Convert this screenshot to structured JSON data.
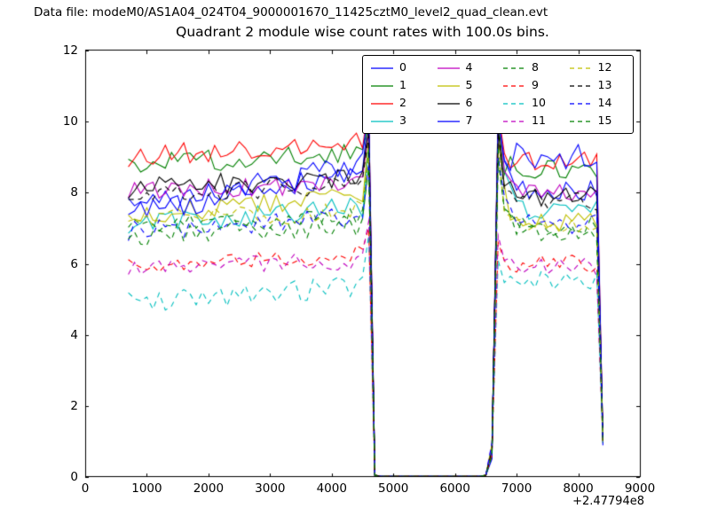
{
  "header": {
    "data_file": "Data file: modeM0/AS1A04_024T04_9000001670_11425cztM0_level2_quad_clean.evt"
  },
  "chart_data": {
    "type": "line",
    "title": "Quadrant 2 module wise count rates with 100.0s bins.",
    "xlabel": "",
    "ylabel": "",
    "x_offset_label": "+2.47794e8",
    "xlim": [
      0,
      9000
    ],
    "ylim": [
      0,
      12
    ],
    "xticks": [
      0,
      1000,
      2000,
      3000,
      4000,
      5000,
      6000,
      7000,
      8000,
      9000
    ],
    "yticks": [
      0,
      2,
      4,
      6,
      8,
      10,
      12
    ],
    "bin_seconds": "100.0",
    "grid": false,
    "legend_position": "upper center, inside axes, 4 columns",
    "legend_entries": [
      "0",
      "1",
      "2",
      "3",
      "4",
      "5",
      "6",
      "7",
      "8",
      "9",
      "10",
      "11",
      "12",
      "13",
      "14",
      "15"
    ],
    "structure": {
      "x_start": 700,
      "x_step": 100,
      "pre_peak_x": 4600,
      "gap": [
        4700,
        6500
      ],
      "post_peak_x": 6700,
      "post_end_x": 8300,
      "x_end": 8400
    },
    "series": [
      {
        "name": "0",
        "color": "#0000ff",
        "style": "solid",
        "pre_start": 7.6,
        "pre_end": 8.6,
        "pre_peak": 10.3,
        "post_peak": 10.2,
        "post_level": 8.0,
        "end_level": 1.1,
        "noise": 0.35
      },
      {
        "name": "1",
        "color": "#008000",
        "style": "solid",
        "pre_start": 8.8,
        "pre_end": 9.1,
        "pre_peak": 9.9,
        "post_peak": 10.0,
        "post_level": 8.7,
        "end_level": 1.1,
        "noise": 0.3
      },
      {
        "name": "2",
        "color": "#ff0000",
        "style": "solid",
        "pre_start": 9.0,
        "pre_end": 9.5,
        "pre_peak": 10.5,
        "post_peak": 10.3,
        "post_level": 8.9,
        "end_level": 1.2,
        "noise": 0.3
      },
      {
        "name": "3",
        "color": "#00bfbf",
        "style": "solid",
        "pre_start": 7.1,
        "pre_end": 7.6,
        "pre_peak": 9.4,
        "post_peak": 10.4,
        "post_level": 7.5,
        "end_level": 1.0,
        "noise": 0.3
      },
      {
        "name": "4",
        "color": "#bf00bf",
        "style": "solid",
        "pre_start": 8.0,
        "pre_end": 8.3,
        "pre_peak": 9.7,
        "post_peak": 10.4,
        "post_level": 8.0,
        "end_level": 1.1,
        "noise": 0.3
      },
      {
        "name": "5",
        "color": "#bfbf00",
        "style": "solid",
        "pre_start": 7.4,
        "pre_end": 7.9,
        "pre_peak": 9.5,
        "post_peak": 9.5,
        "post_level": 7.2,
        "end_level": 1.0,
        "noise": 0.3
      },
      {
        "name": "6",
        "color": "#000000",
        "style": "solid",
        "pre_start": 8.1,
        "pre_end": 8.5,
        "pre_peak": 9.8,
        "post_peak": 9.8,
        "post_level": 7.9,
        "end_level": 1.1,
        "noise": 0.3
      },
      {
        "name": "7",
        "color": "#0000ff",
        "style": "solid",
        "pre_start": 7.3,
        "pre_end": 8.9,
        "pre_peak": 10.4,
        "post_peak": 10.1,
        "post_level": 9.0,
        "end_level": 1.2,
        "noise": 0.4
      },
      {
        "name": "8",
        "color": "#008000",
        "style": "dashed",
        "pre_start": 7.0,
        "pre_end": 7.3,
        "pre_peak": 9.2,
        "post_peak": 9.3,
        "post_level": 7.0,
        "end_level": 1.0,
        "noise": 0.3
      },
      {
        "name": "9",
        "color": "#ff0000",
        "style": "dashed",
        "pre_start": 5.9,
        "pre_end": 6.3,
        "pre_peak": 7.0,
        "post_peak": 6.6,
        "post_level": 6.0,
        "end_level": 1.0,
        "noise": 0.25
      },
      {
        "name": "10",
        "color": "#00bfbf",
        "style": "dashed",
        "pre_start": 4.9,
        "pre_end": 5.4,
        "pre_peak": 6.8,
        "post_peak": 6.1,
        "post_level": 5.5,
        "end_level": 1.0,
        "noise": 0.3
      },
      {
        "name": "11",
        "color": "#bf00bf",
        "style": "dashed",
        "pre_start": 5.9,
        "pre_end": 6.1,
        "pre_peak": 7.2,
        "post_peak": 6.8,
        "post_level": 5.9,
        "end_level": 1.0,
        "noise": 0.25
      },
      {
        "name": "12",
        "color": "#bfbf00",
        "style": "dashed",
        "pre_start": 7.2,
        "pre_end": 7.5,
        "pre_peak": 9.0,
        "post_peak": 9.1,
        "post_level": 7.0,
        "end_level": 1.0,
        "noise": 0.3
      },
      {
        "name": "13",
        "color": "#000000",
        "style": "dashed",
        "pre_start": 7.9,
        "pre_end": 8.3,
        "pre_peak": 9.6,
        "post_peak": 9.7,
        "post_level": 7.8,
        "end_level": 1.1,
        "noise": 0.3
      },
      {
        "name": "14",
        "color": "#0000ff",
        "style": "dashed",
        "pre_start": 6.9,
        "pre_end": 7.3,
        "pre_peak": 8.8,
        "post_peak": 9.0,
        "post_level": 7.1,
        "end_level": 1.0,
        "noise": 0.3
      },
      {
        "name": "15",
        "color": "#008000",
        "style": "dashed",
        "pre_start": 6.8,
        "pre_end": 7.1,
        "pre_peak": 8.7,
        "post_peak": 8.9,
        "post_level": 6.9,
        "end_level": 1.0,
        "noise": 0.3
      }
    ]
  }
}
